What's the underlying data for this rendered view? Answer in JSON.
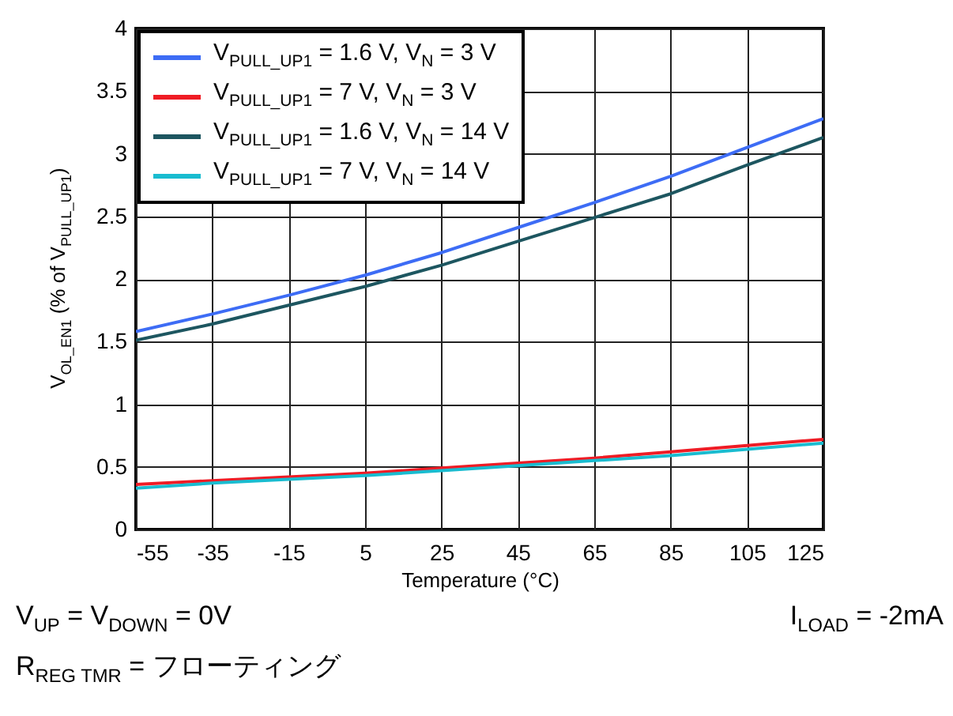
{
  "chart_data": {
    "type": "line",
    "xlabel": "Temperature (°C)",
    "ylabel": "V$_{OL_EN1}$ (% of V$_{PULL_UP1}$)",
    "x": [
      -55,
      -35,
      -15,
      5,
      25,
      45,
      65,
      85,
      105,
      125
    ],
    "series": [
      {
        "name": "V$_{PULL_UP1}$ = 1.6 V, V$_{N}$ = 3 V",
        "color": "#3d6cf5",
        "values": [
          1.58,
          1.72,
          1.87,
          2.03,
          2.21,
          2.41,
          2.61,
          2.82,
          3.05,
          3.28
        ]
      },
      {
        "name": "V$_{PULL_UP1}$ = 7 V, V$_{N}$ = 3 V",
        "color": "#ef1c25",
        "values": [
          0.36,
          0.39,
          0.42,
          0.45,
          0.49,
          0.53,
          0.57,
          0.62,
          0.67,
          0.72
        ]
      },
      {
        "name": "V$_{PULL_UP1}$ = 1.6 V, V$_{N}$ = 14 V",
        "color": "#1d5660",
        "values": [
          1.51,
          1.64,
          1.79,
          1.94,
          2.11,
          2.3,
          2.49,
          2.68,
          2.91,
          3.13
        ]
      },
      {
        "name": "V$_{PULL_UP1}$ = 7 V, V$_{N}$ = 14 V",
        "color": "#19bcd0",
        "values": [
          0.33,
          0.37,
          0.4,
          0.43,
          0.47,
          0.51,
          0.55,
          0.59,
          0.64,
          0.69
        ]
      }
    ],
    "xlim": [
      -55,
      125
    ],
    "xticks": [
      -55,
      -35,
      -15,
      5,
      25,
      45,
      65,
      85,
      105,
      125
    ],
    "ylim": [
      0,
      4
    ],
    "yticks": [
      0,
      0.5,
      1,
      1.5,
      2,
      2.5,
      3,
      3.5,
      4
    ],
    "grid": true,
    "legend": "top left",
    "annotations": [
      "V$_{UP}$ = V$_{DOWN}$ = 0V",
      "I$_{LOAD}$ = -2mA",
      "R$_{REG TMR}$ = フローティング"
    ]
  }
}
